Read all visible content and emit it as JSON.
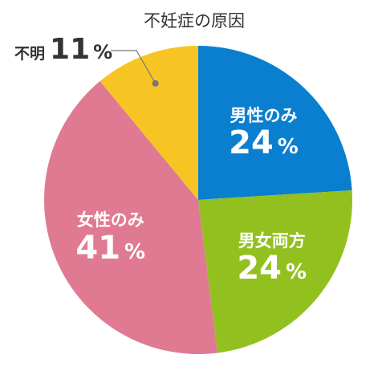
{
  "chart_data": {
    "type": "pie",
    "title": "不妊症の原因",
    "slices": [
      {
        "label": "男性のみ",
        "value": 24,
        "pct_text": "24",
        "unit": "%",
        "color": "#0a7fd0"
      },
      {
        "label": "男女両方",
        "value": 24,
        "pct_text": "24",
        "unit": "%",
        "color": "#92c11f"
      },
      {
        "label": "女性のみ",
        "value": 41,
        "pct_text": "41",
        "unit": "%",
        "color": "#e07a92"
      },
      {
        "label": "不明",
        "value": 11,
        "pct_text": "11",
        "unit": "%",
        "color": "#f6c524"
      }
    ],
    "start": "12 o'clock",
    "direction": "clockwise",
    "legend": "none",
    "leader_color": "#777777"
  }
}
